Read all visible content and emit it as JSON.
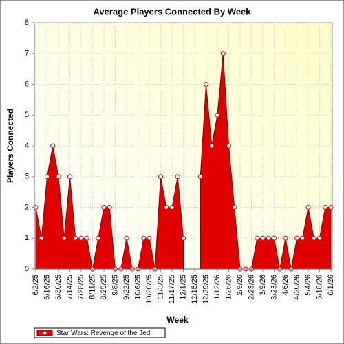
{
  "chart_data": {
    "type": "area",
    "title": "Average Players Connected By Week",
    "x_label": "Week",
    "y_label": "Players Connected",
    "categories": [
      "6/2/25",
      null,
      "6/16/25",
      null,
      "6/30/25",
      null,
      "7/14/25",
      null,
      "7/28/25",
      null,
      "8/11/25",
      null,
      "8/25/25",
      null,
      "9/8/25",
      null,
      "9/22/25",
      null,
      "10/6/25",
      null,
      "10/20/25",
      null,
      "11/3/25",
      null,
      "11/17/25",
      null,
      "12/1/25",
      null,
      "12/15/25",
      null,
      "12/29/25",
      null,
      "1/12/26",
      null,
      "1/26/26",
      null,
      "2/9/26",
      null,
      "2/23/26",
      null,
      "3/9/26",
      null,
      "3/23/26",
      null,
      "4/6/26",
      null,
      "4/20/26",
      null,
      "5/4/26",
      null,
      "5/18/26",
      null,
      "6/1/26"
    ],
    "series": [
      {
        "name": "Star Wars: Revenge of the Jedi",
        "color": "#e00000",
        "values": [
          2,
          1,
          3,
          4,
          3,
          1,
          3,
          1,
          1,
          1,
          0,
          1,
          2,
          2,
          0,
          0,
          1,
          0,
          0,
          1,
          1,
          0,
          3,
          2,
          2,
          3,
          1,
          null,
          null,
          3,
          6,
          4,
          5,
          7,
          4,
          2,
          0,
          0,
          0,
          1,
          1,
          1,
          1,
          0,
          1,
          0,
          1,
          1,
          2,
          1,
          1,
          2,
          2
        ]
      }
    ],
    "ylim": [
      0,
      8
    ],
    "yticks": [
      0,
      1,
      2,
      3,
      4,
      5,
      6,
      7,
      8
    ],
    "grid": true,
    "legend": "bottom"
  }
}
